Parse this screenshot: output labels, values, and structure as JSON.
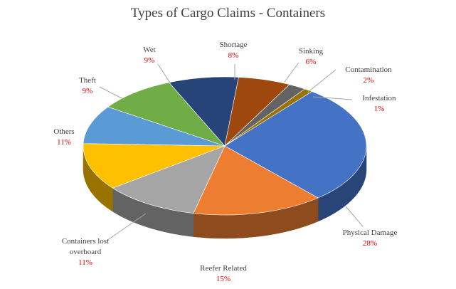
{
  "chart_data": {
    "type": "pie3d",
    "title": "Types of Cargo Claims - Containers",
    "categories": [
      "Physical Damage",
      "Reefer Related",
      "Containers lost overboard",
      "Others",
      "Theft",
      "Wet",
      "Shortage",
      "Sinking",
      "Contamination",
      "Infestation"
    ],
    "values": [
      28,
      15,
      11,
      11,
      9,
      9,
      8,
      6,
      2,
      1
    ],
    "value_labels": [
      "28%",
      "15%",
      "11%",
      "11%",
      "9%",
      "9%",
      "8%",
      "6%",
      "2%",
      "1%"
    ],
    "colors": [
      "#4472c4",
      "#ed7d31",
      "#a5a5a5",
      "#ffc000",
      "#5b9bd5",
      "#70ad47",
      "#264478",
      "#9e480e",
      "#636363",
      "#997300"
    ]
  }
}
